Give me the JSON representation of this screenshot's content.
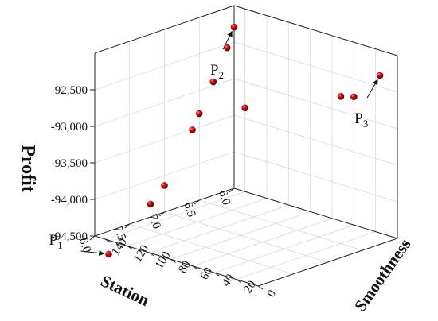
{
  "chart_data": {
    "type": "scatter",
    "xlabel": "Station",
    "ylabel": "Smoothness",
    "zlabel": "Profit",
    "x_ticks": [
      "6.0",
      "6.5",
      "7.0",
      "7.5",
      "8.0"
    ],
    "y_ticks": [
      "0",
      "20",
      "40",
      "60",
      "80",
      "100",
      "120",
      "140"
    ],
    "z_ticks": [
      "-92,500",
      "-93,000",
      "-93,500",
      "-94,000",
      "-94,500"
    ],
    "xlim": [
      6.0,
      8.0
    ],
    "ylim": [
      0,
      140
    ],
    "zlim": [
      -94500,
      -92000
    ],
    "grid": true,
    "marker_color": "#cc1111",
    "points": [
      {
        "x": 6.0,
        "y": 16,
        "z": -92345
      },
      {
        "x": 6.0,
        "y": 40,
        "z": -92745
      },
      {
        "x": 6.0,
        "y": 52,
        "z": -92795
      },
      {
        "x": 6.0,
        "y": 140,
        "z": -93355
      },
      {
        "x": 6.0,
        "y": 150,
        "z": -92295
      },
      {
        "x": 6.1,
        "y": 150,
        "z": -92545
      },
      {
        "x": 6.3,
        "y": 150,
        "z": -92945
      },
      {
        "x": 6.5,
        "y": 150,
        "z": -93315
      },
      {
        "x": 6.6,
        "y": 150,
        "z": -93505
      },
      {
        "x": 7.0,
        "y": 150,
        "z": -94135
      },
      {
        "x": 7.2,
        "y": 150,
        "z": -94325
      },
      {
        "x": 7.8,
        "y": 150,
        "z": -94815
      }
    ],
    "annotations": [
      {
        "label": "P",
        "sub": "1"
      },
      {
        "label": "P",
        "sub": "2"
      },
      {
        "label": "P",
        "sub": "3"
      }
    ]
  }
}
